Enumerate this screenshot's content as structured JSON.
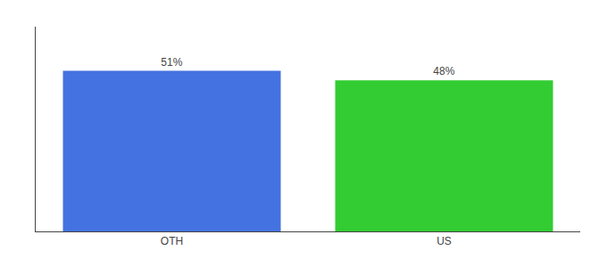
{
  "chart_data": {
    "type": "bar",
    "categories": [
      "OTH",
      "US"
    ],
    "values": [
      51,
      48
    ],
    "value_labels": [
      "51%",
      "48%"
    ],
    "colors": [
      "#4472e0",
      "#33cc33"
    ],
    "ylim": [
      0,
      65
    ],
    "yticks": [],
    "grid": false,
    "data_labels": true,
    "tick_labels": "x"
  }
}
